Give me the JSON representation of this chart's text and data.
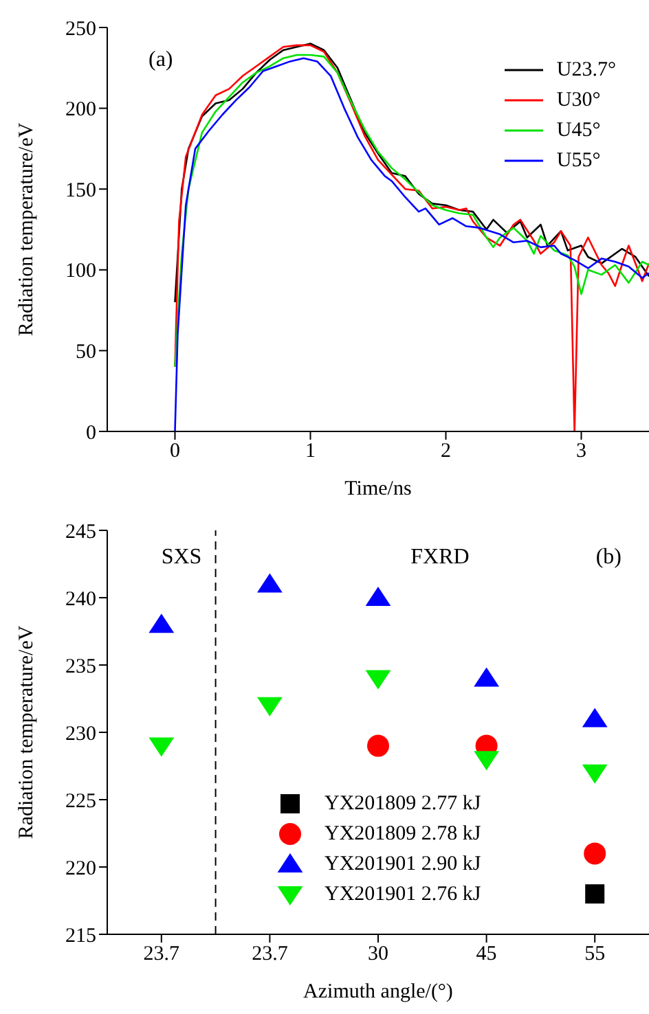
{
  "chart_data": [
    {
      "type": "line",
      "xlabel": "Time/ns",
      "ylabel": "Radiation temperature/eV",
      "annotations": [
        "(a)"
      ],
      "xlim": [
        -0.5,
        3.5
      ],
      "xticks": [
        0,
        1,
        2,
        3
      ],
      "ylim": [
        0,
        250
      ],
      "yticks": [
        0,
        50,
        100,
        150,
        200,
        250
      ],
      "legend": "top right",
      "marker": "none",
      "line_style": "solid",
      "grid": false,
      "series": [
        {
          "name": "U23.7°",
          "color": "#000000",
          "x": [
            0,
            0.05,
            0.1,
            0.2,
            0.3,
            0.4,
            0.5,
            0.6,
            0.7,
            0.8,
            0.9,
            1.0,
            1.1,
            1.2,
            1.3,
            1.4,
            1.5,
            1.6,
            1.7,
            1.8,
            1.9,
            2.0,
            2.1,
            2.2,
            2.3,
            2.35,
            2.45,
            2.55,
            2.6,
            2.7,
            2.75,
            2.85,
            2.9,
            3.0,
            3.05,
            3.15,
            3.3,
            3.4,
            3.5
          ],
          "values": [
            80,
            150,
            175,
            195,
            203,
            205,
            212,
            222,
            230,
            236,
            238,
            240,
            236,
            225,
            205,
            185,
            172,
            160,
            158,
            147,
            141,
            140,
            137,
            136,
            125,
            131,
            123,
            130,
            120,
            128,
            115,
            124,
            112,
            115,
            108,
            104,
            113,
            108,
            96
          ]
        },
        {
          "name": "U30°",
          "color": "#ff0000",
          "x": [
            0,
            0.03,
            0.08,
            0.2,
            0.3,
            0.4,
            0.5,
            0.6,
            0.7,
            0.8,
            0.9,
            1.0,
            1.1,
            1.2,
            1.3,
            1.4,
            1.5,
            1.6,
            1.7,
            1.8,
            1.9,
            2.0,
            2.1,
            2.15,
            2.2,
            2.3,
            2.4,
            2.5,
            2.55,
            2.65,
            2.7,
            2.8,
            2.85,
            2.92,
            2.95,
            2.98,
            3.05,
            3.15,
            3.2,
            3.25,
            3.3,
            3.35,
            3.45,
            3.5
          ],
          "values": [
            40,
            130,
            170,
            196,
            208,
            212,
            220,
            226,
            232,
            238,
            239,
            239,
            235,
            222,
            203,
            183,
            168,
            159,
            150,
            149,
            138,
            139,
            137,
            138,
            130,
            120,
            115,
            128,
            131,
            118,
            110,
            117,
            124,
            115,
            0,
            108,
            120,
            103,
            98,
            90,
            103,
            115,
            93,
            104
          ]
        },
        {
          "name": "U45°",
          "color": "#00e000",
          "x": [
            0,
            0.05,
            0.1,
            0.2,
            0.3,
            0.4,
            0.5,
            0.6,
            0.7,
            0.8,
            0.9,
            1.0,
            1.1,
            1.2,
            1.3,
            1.4,
            1.5,
            1.6,
            1.7,
            1.8,
            1.9,
            2.0,
            2.1,
            2.2,
            2.3,
            2.35,
            2.4,
            2.5,
            2.6,
            2.65,
            2.7,
            2.8,
            2.9,
            2.95,
            3.0,
            3.05,
            3.15,
            3.25,
            3.35,
            3.45,
            3.5
          ],
          "values": [
            40,
            110,
            150,
            185,
            198,
            207,
            216,
            222,
            226,
            231,
            233,
            233,
            232,
            222,
            204,
            187,
            173,
            163,
            156,
            148,
            140,
            137,
            135,
            134,
            120,
            114,
            120,
            126,
            118,
            110,
            121,
            112,
            109,
            102,
            85,
            100,
            97,
            103,
            92,
            105,
            103
          ]
        },
        {
          "name": "U55°",
          "color": "#0000ff",
          "x": [
            0,
            0.02,
            0.08,
            0.15,
            0.25,
            0.35,
            0.45,
            0.55,
            0.65,
            0.75,
            0.85,
            0.95,
            1.05,
            1.15,
            1.25,
            1.35,
            1.45,
            1.55,
            1.6,
            1.7,
            1.8,
            1.85,
            1.95,
            2.05,
            2.15,
            2.25,
            2.4,
            2.5,
            2.6,
            2.7,
            2.8,
            2.85,
            2.95,
            3.05,
            3.15,
            3.25,
            3.35,
            3.45,
            3.5
          ],
          "values": [
            0,
            60,
            140,
            175,
            186,
            196,
            205,
            213,
            223,
            226,
            229,
            231,
            229,
            220,
            200,
            182,
            168,
            158,
            155,
            145,
            136,
            138,
            128,
            132,
            127,
            126,
            122,
            117,
            118,
            114,
            115,
            110,
            106,
            101,
            107,
            105,
            102,
            95,
            98
          ]
        }
      ]
    },
    {
      "type": "scatter",
      "xlabel": "Azimuth angle/(°)",
      "ylabel": "Radiation temperature/eV",
      "annotations": [
        "SXS",
        "FXRD",
        "(b)"
      ],
      "categories": [
        "23.7",
        "23.7",
        "30",
        "45",
        "55"
      ],
      "ylim": [
        215,
        245
      ],
      "yticks": [
        215,
        220,
        225,
        230,
        235,
        240,
        245
      ],
      "legend": "bottom",
      "grid": false,
      "series": [
        {
          "name": "YX201809 2.77 kJ",
          "color": "#000000",
          "marker": "square",
          "values": [
            null,
            null,
            null,
            null,
            218
          ]
        },
        {
          "name": "YX201809 2.78 kJ",
          "color": "#ff0000",
          "marker": "circle",
          "values": [
            null,
            null,
            229,
            229,
            221
          ]
        },
        {
          "name": "YX201901 2.90 kJ",
          "color": "#0000ff",
          "marker": "triangle",
          "values": [
            238,
            241,
            240,
            234,
            231
          ]
        },
        {
          "name": "YX201901 2.76 kJ",
          "color": "#00ee00",
          "marker": "triangle-down",
          "values": [
            229,
            232,
            234,
            228,
            227
          ]
        }
      ]
    }
  ]
}
